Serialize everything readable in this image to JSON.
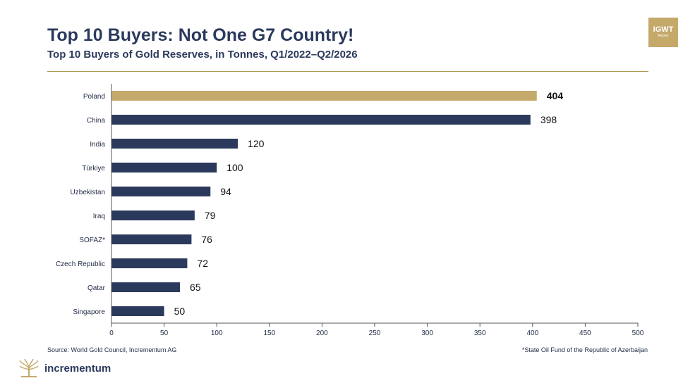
{
  "header": {
    "title": "Top 10 Buyers: Not One G7 Country!",
    "subtitle": "Top 10 Buyers of Gold Reserves, in Tonnes, Q1/2022–Q2/2026"
  },
  "badge": {
    "main": "IGWT",
    "sub": "Report"
  },
  "colors": {
    "highlight": "#c4a96b",
    "bar": "#2b3a5c",
    "accent_rule": "#a89a55"
  },
  "chart_data": {
    "type": "bar",
    "orientation": "horizontal",
    "categories": [
      "Poland",
      "China",
      "India",
      "Türkiye",
      "Uzbekistan",
      "Iraq",
      "SOFAZ*",
      "Czech Republic",
      "Qatar",
      "Singapore"
    ],
    "values": [
      404,
      398,
      120,
      100,
      94,
      79,
      76,
      72,
      65,
      50
    ],
    "data_labels": [
      "404",
      "398",
      "120",
      "100",
      "94",
      "79",
      "76",
      "72",
      "65",
      "50"
    ],
    "highlight_category": "Poland",
    "xlim": [
      0,
      500
    ],
    "xticks": [
      0,
      50,
      100,
      150,
      200,
      250,
      300,
      350,
      400,
      450,
      500
    ],
    "grid": false,
    "legend": "none"
  },
  "footer": {
    "source": "Source: World Gold Council, Incrementum AG",
    "note": "*State Oil Fund of the Republic of Azerbaijan",
    "brand": "incrementum",
    "logo_icon": "tree-logo-icon"
  }
}
